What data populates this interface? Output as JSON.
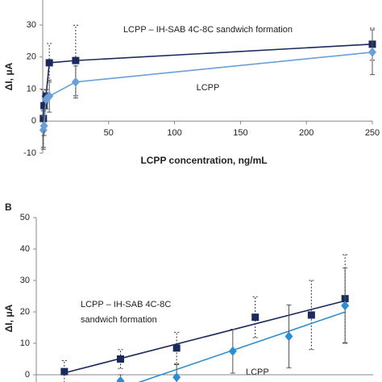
{
  "chart_data": [
    {
      "type": "line",
      "y_label": "ΔI, μA",
      "x_label": "LCPP concentration, ng/mL",
      "annotations": [
        "LCPP – IH-SAB 4C-8C sandwich formation",
        "LCPP"
      ],
      "xlim": [
        0,
        250
      ],
      "xticks": [
        50,
        100,
        150,
        200,
        250
      ],
      "ylim": [
        -10,
        30
      ],
      "yticks": [
        -10,
        0,
        10,
        20,
        30
      ],
      "series": [
        {
          "color": "#1b2a5e",
          "marker": "square",
          "error_dash": true,
          "x": [
            0.5,
            1,
            2.5,
            5,
            25,
            250
          ],
          "values": [
            0.8,
            4.8,
            7.8,
            18.2,
            18.9,
            24.0
          ],
          "errors": [
            9,
            3,
            2,
            6,
            11,
            5
          ]
        },
        {
          "color": "#6a9fd8",
          "marker": "diamond",
          "error_dash": false,
          "x": [
            0.5,
            1,
            2.5,
            5,
            25,
            250
          ],
          "values": [
            -2.8,
            -1.5,
            6.8,
            7.8,
            12.2,
            21.5
          ],
          "errors": [
            6,
            3,
            3,
            5,
            5,
            7
          ]
        }
      ]
    },
    {
      "type": "scatter",
      "panel_label": "B",
      "y_label": "ΔI, μA",
      "annotations": [
        "LCPP – IH-SAB 4C-8C",
        "sandwich formation",
        "LCPP"
      ],
      "trendline": true,
      "xlim": [
        0.5,
        6.5
      ],
      "ylim": [
        0,
        50
      ],
      "yticks": [
        0,
        10,
        20,
        30,
        40,
        50
      ],
      "series": [
        {
          "color": "#1b2a5e",
          "marker": "square",
          "error_dash": true,
          "x": [
            1,
            2,
            3,
            4.4,
            5.4,
            6
          ],
          "values": [
            1.0,
            5.0,
            8.5,
            18.3,
            19.0,
            24.2
          ],
          "errors": [
            3.5,
            3,
            5,
            6.5,
            11,
            14
          ]
        },
        {
          "color": "#2a8fd0",
          "marker": "diamond",
          "error_dash": false,
          "x": [
            2,
            3,
            4,
            5,
            6
          ],
          "values": [
            -2,
            -0.8,
            7.5,
            12.2,
            22
          ],
          "errors": [
            2,
            4,
            7,
            10,
            12
          ]
        }
      ]
    }
  ]
}
